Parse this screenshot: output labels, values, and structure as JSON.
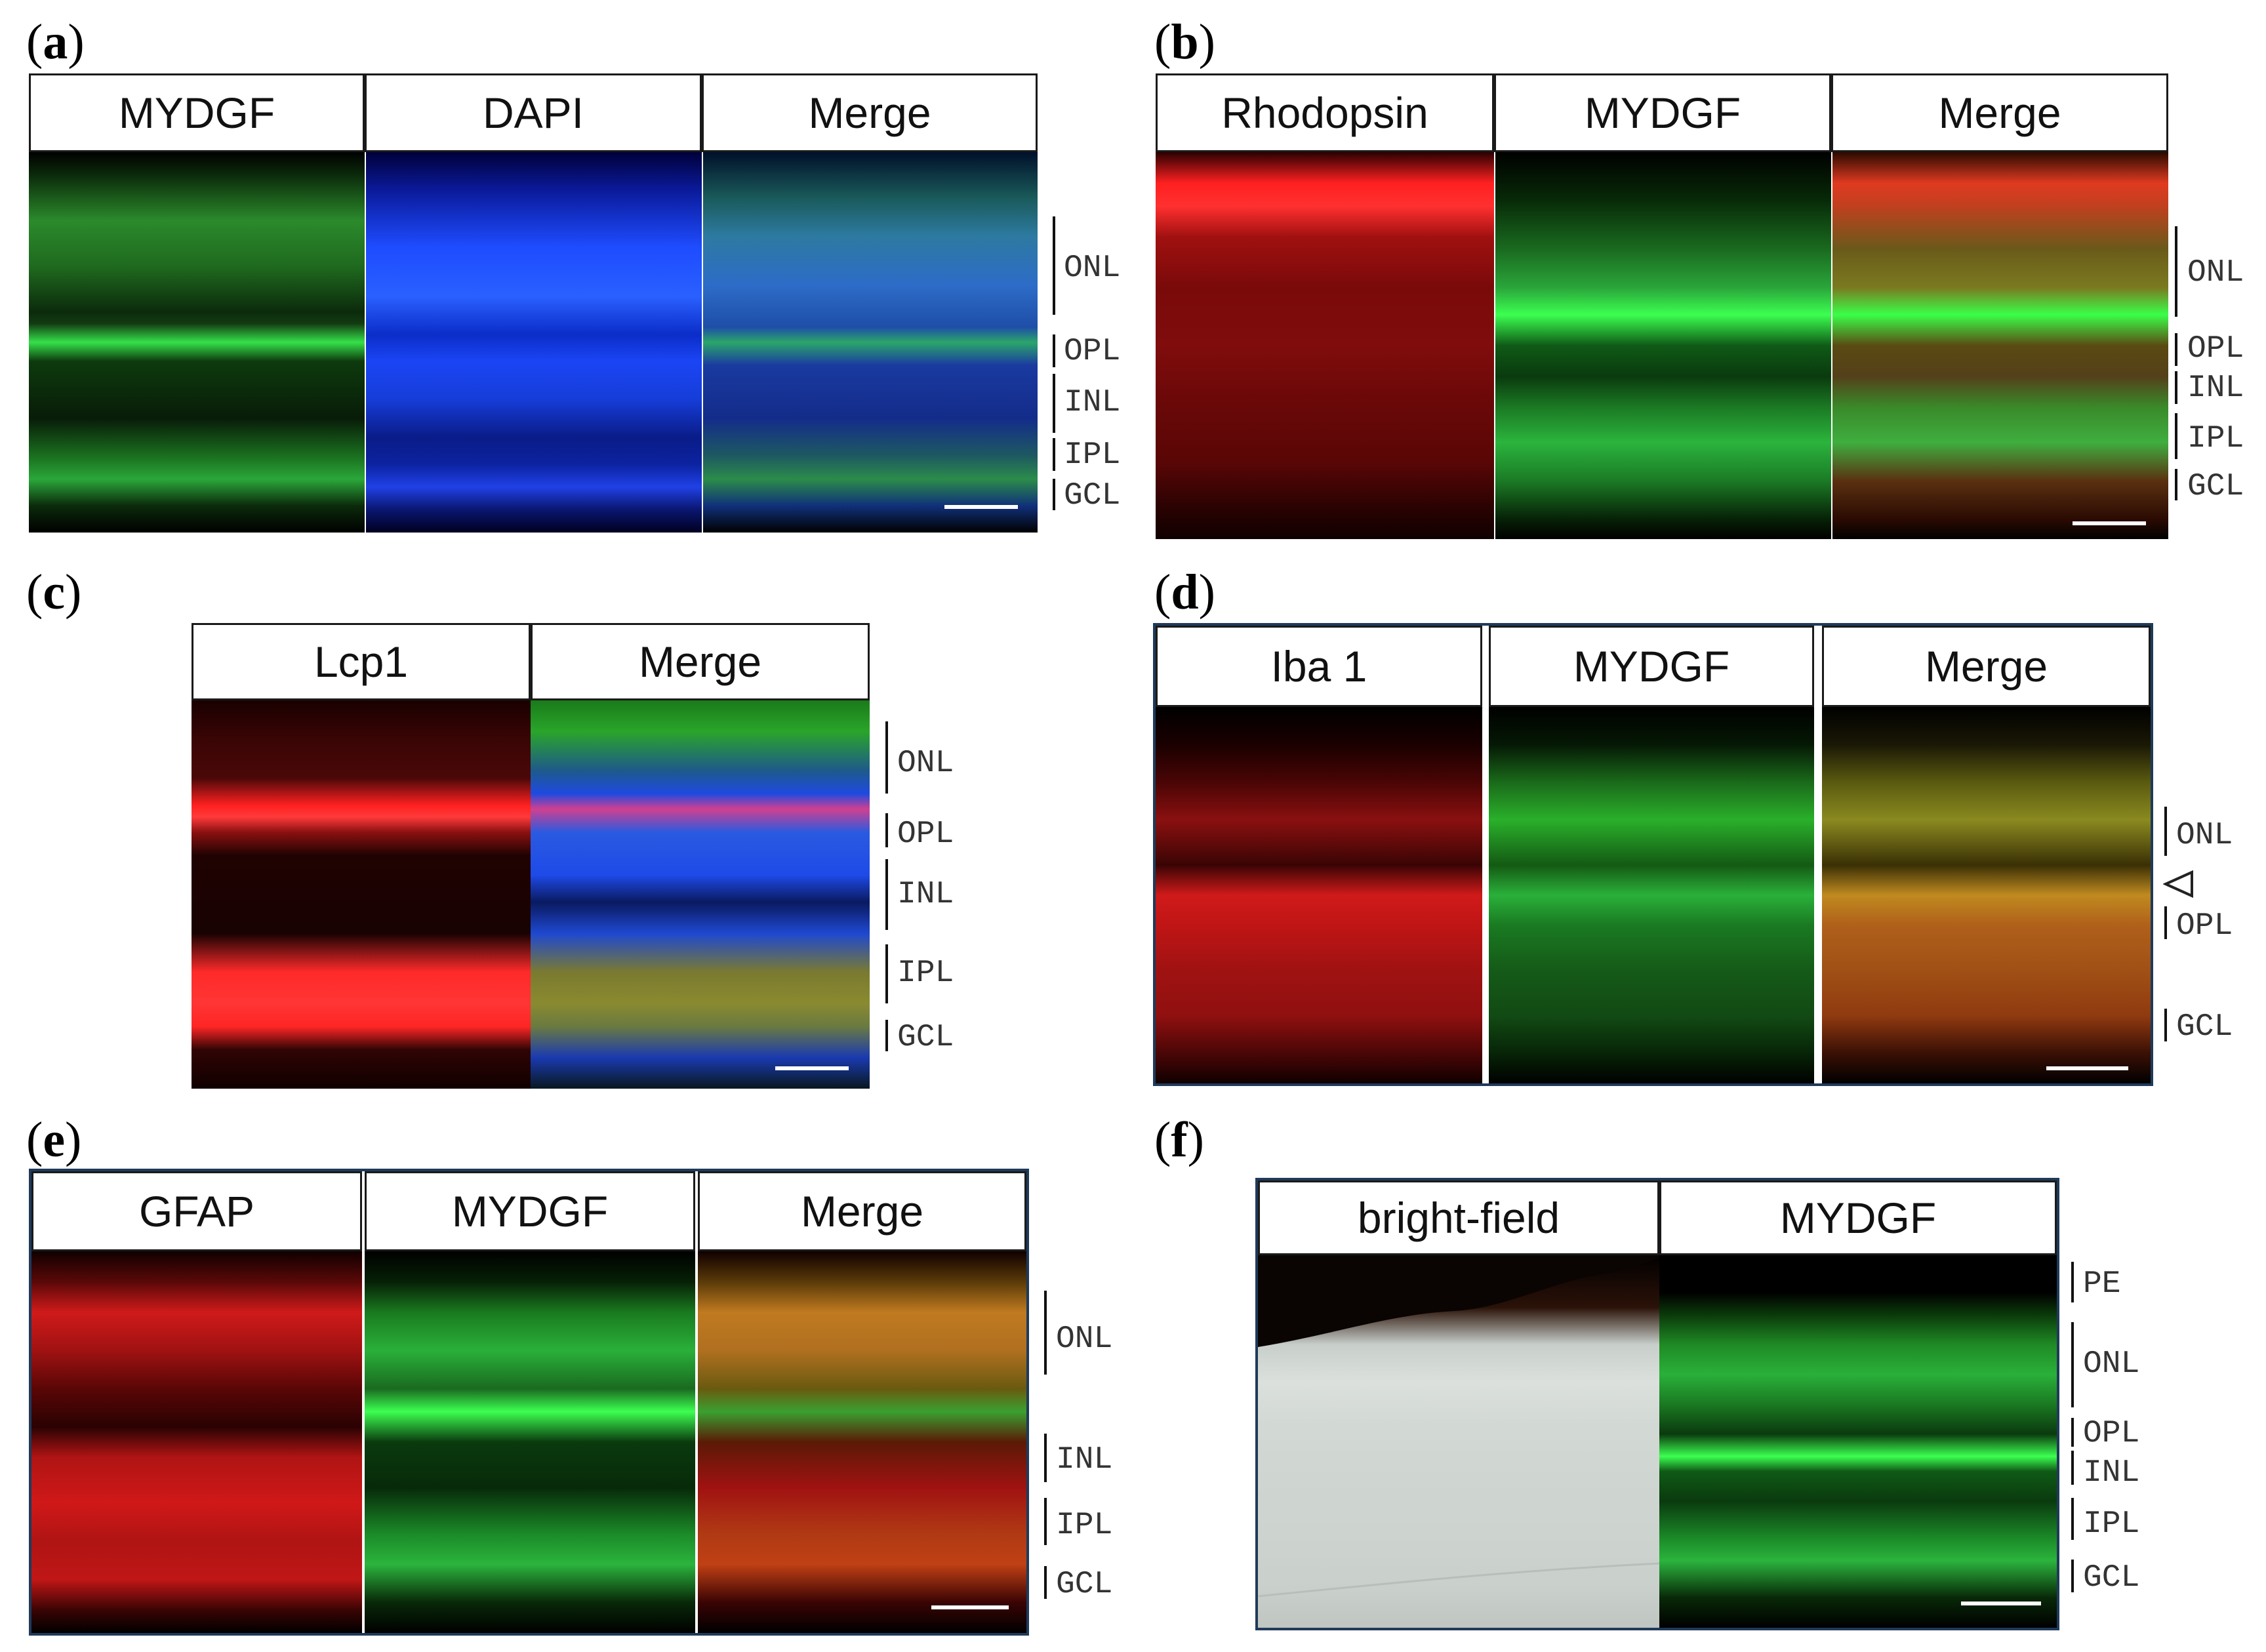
{
  "panels": {
    "a": {
      "letter": "a",
      "headers": [
        "MYDGF",
        "DAPI",
        "Merge"
      ],
      "layers": [
        "ONL",
        "OPL",
        "INL",
        "IPL",
        "GCL"
      ]
    },
    "b": {
      "letter": "b",
      "headers": [
        "Rhodopsin",
        "MYDGF",
        "Merge"
      ],
      "layers": [
        "ONL",
        "OPL",
        "INL",
        "IPL",
        "GCL"
      ]
    },
    "c": {
      "letter": "c",
      "headers": [
        "Lcp1",
        "Merge"
      ],
      "layers": [
        "ONL",
        "OPL",
        "INL",
        "IPL",
        "GCL"
      ]
    },
    "d": {
      "letter": "d",
      "headers": [
        "Iba 1",
        "MYDGF",
        "Merge"
      ],
      "layers": [
        "ONL",
        "OPL",
        "GCL"
      ]
    },
    "e": {
      "letter": "e",
      "headers": [
        "GFAP",
        "MYDGF",
        "Merge"
      ],
      "layers": [
        "ONL",
        "INL",
        "IPL",
        "GCL"
      ]
    },
    "f": {
      "letter": "f",
      "headers": [
        "bright-field",
        "MYDGF"
      ],
      "layers": [
        "PE",
        "ONL",
        "OPL",
        "INL",
        "IPL",
        "GCL"
      ]
    }
  },
  "colors": {
    "green": "#2fd04a",
    "blue": "#1f4fff",
    "red": "#ff2020",
    "frame": "#1f3a5a"
  }
}
